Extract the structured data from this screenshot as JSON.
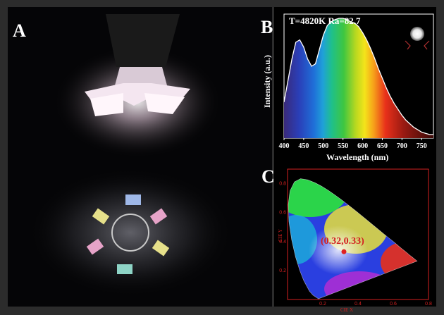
{
  "panels": {
    "a": {
      "letter": "A"
    },
    "b": {
      "letter": "B",
      "annotation": "T=4820K   Ra=82.7"
    },
    "c": {
      "letter": "C"
    }
  },
  "chart_data": [
    {
      "type": "line",
      "panel": "B",
      "title": "",
      "xlabel": "Wavelength (nm)",
      "ylabel": "Intensity (a.u.)",
      "annotation": "T=4820K   Ra=82.7",
      "xlim": [
        400,
        780
      ],
      "xticks": [
        400,
        450,
        500,
        550,
        600,
        650,
        700,
        750
      ],
      "x": [
        400,
        410,
        420,
        430,
        440,
        450,
        460,
        470,
        480,
        490,
        500,
        510,
        520,
        530,
        540,
        550,
        560,
        570,
        580,
        590,
        600,
        610,
        620,
        630,
        640,
        650,
        660,
        670,
        680,
        690,
        700,
        710,
        720,
        730,
        740,
        750,
        760,
        770,
        780
      ],
      "series": [
        {
          "values": [
            0.3,
            0.48,
            0.66,
            0.8,
            0.82,
            0.76,
            0.66,
            0.6,
            0.62,
            0.74,
            0.86,
            0.94,
            0.97,
            0.99,
            1.0,
            1.0,
            0.99,
            0.97,
            0.96,
            0.93,
            0.88,
            0.82,
            0.75,
            0.67,
            0.58,
            0.5,
            0.42,
            0.35,
            0.29,
            0.24,
            0.19,
            0.15,
            0.12,
            0.09,
            0.07,
            0.05,
            0.04,
            0.03,
            0.03
          ]
        }
      ],
      "grid": false,
      "legend": "none"
    },
    {
      "type": "scatter",
      "panel": "C",
      "title": "",
      "xlabel": "CIE X",
      "ylabel": "CIE Y",
      "xlim": [
        0,
        0.8
      ],
      "ylim": [
        0,
        0.9
      ],
      "xticks": [
        0.2,
        0.4,
        0.6,
        0.8
      ],
      "yticks": [
        0.2,
        0.4,
        0.6,
        0.8
      ],
      "point": {
        "x": 0.32,
        "y": 0.33,
        "label": "(0.32,0.33)"
      },
      "locus": [
        [
          0.175,
          0.005
        ],
        [
          0.144,
          0.03
        ],
        [
          0.124,
          0.058
        ],
        [
          0.091,
          0.133
        ],
        [
          0.069,
          0.201
        ],
        [
          0.045,
          0.295
        ],
        [
          0.023,
          0.413
        ],
        [
          0.008,
          0.538
        ],
        [
          0.004,
          0.655
        ],
        [
          0.014,
          0.75
        ],
        [
          0.039,
          0.812
        ],
        [
          0.074,
          0.834
        ],
        [
          0.114,
          0.826
        ],
        [
          0.155,
          0.806
        ],
        [
          0.193,
          0.782
        ],
        [
          0.23,
          0.754
        ],
        [
          0.266,
          0.724
        ],
        [
          0.302,
          0.692
        ],
        [
          0.337,
          0.659
        ],
        [
          0.373,
          0.625
        ],
        [
          0.409,
          0.59
        ],
        [
          0.444,
          0.555
        ],
        [
          0.479,
          0.52
        ],
        [
          0.512,
          0.487
        ],
        [
          0.545,
          0.454
        ],
        [
          0.575,
          0.424
        ],
        [
          0.603,
          0.397
        ],
        [
          0.627,
          0.372
        ],
        [
          0.648,
          0.351
        ],
        [
          0.666,
          0.334
        ],
        [
          0.68,
          0.32
        ],
        [
          0.691,
          0.308
        ],
        [
          0.705,
          0.295
        ],
        [
          0.735,
          0.265
        ]
      ],
      "grid": false,
      "legend": "none"
    }
  ]
}
